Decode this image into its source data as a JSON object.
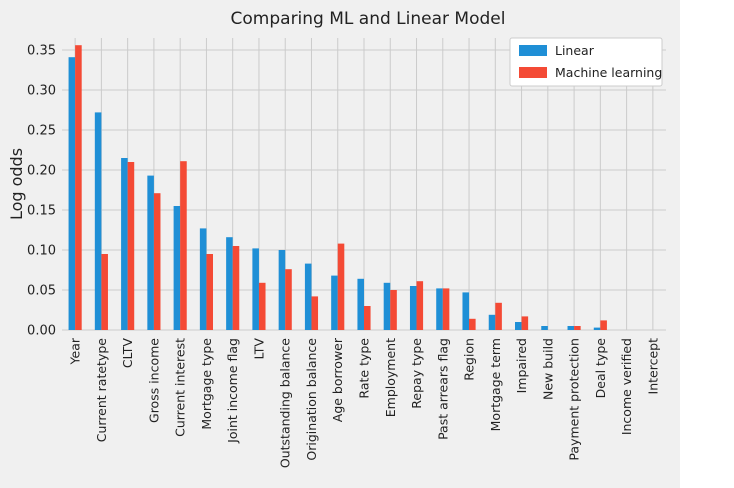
{
  "chart_data": {
    "type": "bar",
    "title": "Comparing ML and Linear Model",
    "xlabel": "",
    "ylabel": "Log odds",
    "ylim": [
      0,
      0.365
    ],
    "yticks": [
      0.0,
      0.05,
      0.1,
      0.15,
      0.2,
      0.25,
      0.3,
      0.35
    ],
    "ytick_labels": [
      "0.00",
      "0.05",
      "0.10",
      "0.15",
      "0.20",
      "0.25",
      "0.30",
      "0.35"
    ],
    "grid": true,
    "legend_position": "top-right",
    "categories": [
      "Year",
      "Current ratetype",
      "CLTV",
      "Gross income",
      "Current interest",
      "Mortgage type",
      "Joint income flag",
      "LTV",
      "Outstanding balance",
      "Origination balance",
      "Age borrower",
      "Rate type",
      "Employment",
      "Repay type",
      "Past arrears flag",
      "Region",
      "Mortgage term",
      "Impaired",
      "New build",
      "Payment protection",
      "Deal type",
      "Income verified",
      "Intercept"
    ],
    "series": [
      {
        "name": "Linear",
        "color": "#1f8fd6",
        "values": [
          0.341,
          0.272,
          0.215,
          0.193,
          0.155,
          0.127,
          0.116,
          0.102,
          0.1,
          0.083,
          0.068,
          0.064,
          0.059,
          0.055,
          0.052,
          0.047,
          0.019,
          0.01,
          0.005,
          0.005,
          0.003,
          0.0,
          0.0
        ]
      },
      {
        "name": "Machine learning",
        "color": "#f44a35",
        "values": [
          0.356,
          0.095,
          0.21,
          0.171,
          0.211,
          0.095,
          0.105,
          0.059,
          0.076,
          0.042,
          0.108,
          0.03,
          0.05,
          0.061,
          0.052,
          0.014,
          0.034,
          0.017,
          0.0,
          0.005,
          0.012,
          0.0,
          0.0
        ]
      }
    ]
  }
}
